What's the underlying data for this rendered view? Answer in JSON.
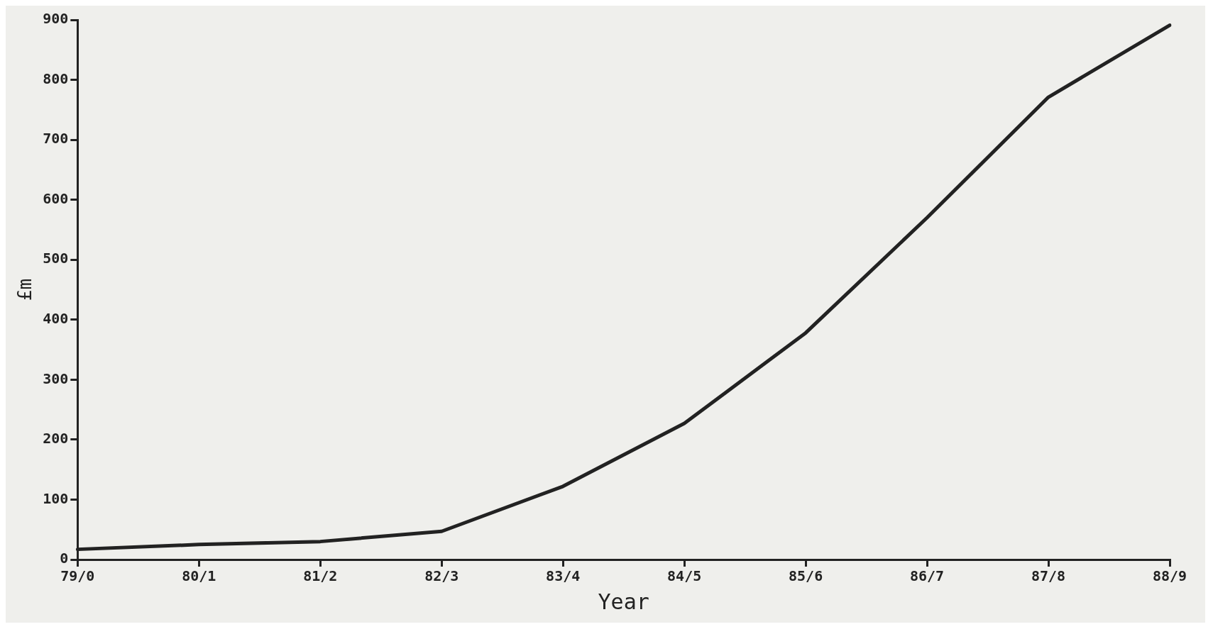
{
  "chart_data": {
    "type": "line",
    "xlabel": "Year",
    "ylabel": "£m",
    "categories": [
      "79/0",
      "80/1",
      "81/2",
      "82/3",
      "83/4",
      "84/5",
      "85/6",
      "86/7",
      "87/8",
      "88/9"
    ],
    "series": [
      {
        "color": "#222222",
        "values": [
          17,
          25,
          30,
          47,
          122,
          227,
          378,
          570,
          771,
          891
        ]
      }
    ],
    "ylim": [
      0,
      900
    ],
    "yticks": [
      0,
      100,
      200,
      300,
      400,
      500,
      600,
      700,
      800,
      900
    ],
    "grid": false,
    "legend": false,
    "marker": "none",
    "line_style": "solid"
  }
}
